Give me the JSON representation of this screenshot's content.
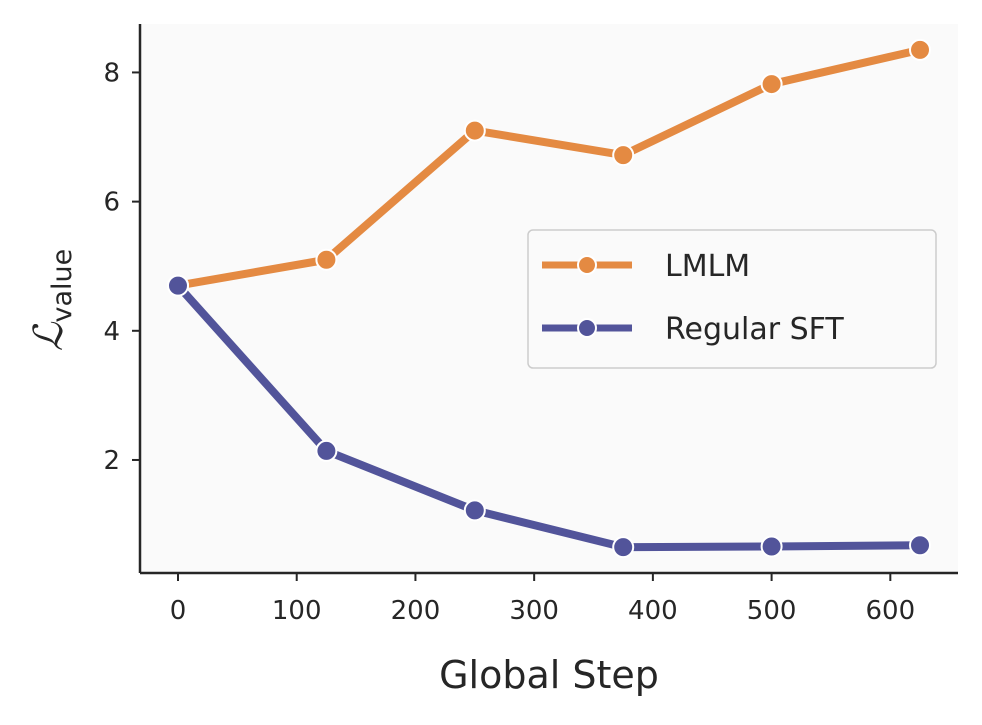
{
  "chart_data": {
    "type": "line",
    "x": [
      0,
      125,
      250,
      375,
      500,
      625
    ],
    "series": [
      {
        "name": "LMLM",
        "color": "#e48a42",
        "values": [
          4.7,
          5.1,
          7.1,
          6.72,
          7.82,
          8.35
        ]
      },
      {
        "name": "Regular SFT",
        "color": "#52549a",
        "values": [
          4.7,
          2.14,
          1.22,
          0.65,
          0.66,
          0.68
        ]
      }
    ],
    "xlabel": "Global Step",
    "ylabel": {
      "symbol": "ℒ",
      "subscript": "value"
    },
    "xticks": [
      "0",
      "100",
      "200",
      "300",
      "400",
      "500",
      "600"
    ],
    "yticks": [
      "2",
      "4",
      "6",
      "8"
    ],
    "xlim": [
      -32,
      657
    ],
    "ylim": [
      0.25,
      8.75
    ],
    "grid": false,
    "legend_position": "center-right",
    "background": "#fafafa"
  }
}
